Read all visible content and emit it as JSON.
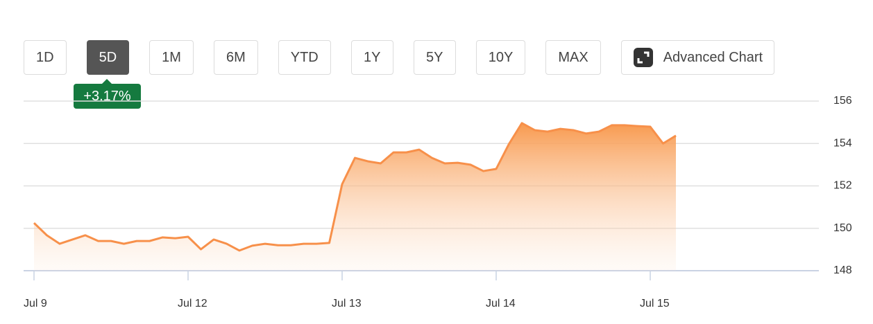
{
  "range_buttons": [
    "1D",
    "5D",
    "1M",
    "6M",
    "YTD",
    "1Y",
    "5Y",
    "10Y",
    "MAX"
  ],
  "selected": "5D",
  "advanced_chart": "Advanced Chart",
  "change": "+3.17%",
  "chart_data": {
    "type": "area",
    "categories": [
      "Jul 9",
      null,
      null,
      null,
      null,
      null,
      null,
      null,
      null,
      null,
      null,
      null,
      "Jul 12",
      null,
      null,
      null,
      null,
      null,
      null,
      null,
      null,
      null,
      null,
      null,
      "Jul 13",
      null,
      null,
      null,
      null,
      null,
      null,
      null,
      null,
      null,
      null,
      null,
      "Jul 14",
      null,
      null,
      null,
      null,
      null,
      null,
      null,
      null,
      null,
      null,
      null,
      "Jul 15",
      null,
      null
    ],
    "values": [
      150.25,
      149.67,
      149.27,
      149.47,
      149.67,
      149.4,
      149.4,
      149.27,
      149.4,
      149.4,
      149.57,
      149.53,
      149.6,
      149.01,
      149.47,
      149.27,
      148.95,
      149.18,
      149.27,
      149.2,
      149.2,
      149.27,
      149.27,
      149.31,
      152.08,
      153.32,
      153.16,
      153.06,
      153.58,
      153.58,
      153.71,
      153.32,
      153.06,
      153.09,
      153.0,
      152.7,
      152.8,
      153.98,
      154.96,
      154.63,
      154.56,
      154.69,
      154.63,
      154.47,
      154.56,
      154.86,
      154.86,
      154.82,
      154.79,
      154.0,
      154.37
    ],
    "color": "#f7904a",
    "ylim": [
      148,
      156
    ],
    "yticks": [
      148,
      150,
      152,
      154,
      156
    ],
    "grid": true
  }
}
